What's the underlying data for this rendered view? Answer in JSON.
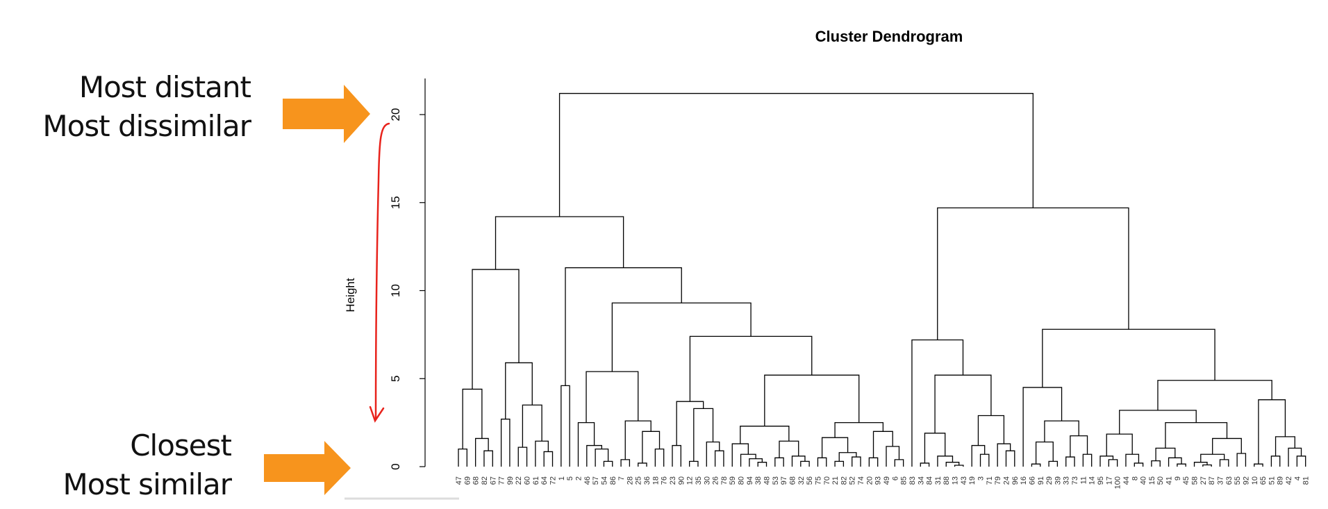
{
  "annotations": {
    "top_line1": "Most distant",
    "top_line2": "Most dissimilar",
    "bottom_line1": "Closest",
    "bottom_line2": "Most similar",
    "arrow_color": "#F7941D",
    "scale_arrow_color": "#E8231C"
  },
  "chart_data": {
    "type": "dendrogram",
    "title": "Cluster Dendrogram",
    "ylabel": "Height",
    "xlabel": "",
    "ylim": [
      0,
      22
    ],
    "yticks": [
      "0",
      "5",
      "10",
      "15",
      "20"
    ],
    "grid": false,
    "line_color": "#000000",
    "leaves": [
      "47",
      "69",
      "68",
      "82",
      "67",
      "77",
      "99",
      "22",
      "60",
      "61",
      "64",
      "72",
      "1",
      "5",
      "2",
      "46",
      "57",
      "54",
      "86",
      "7",
      "28",
      "25",
      "36",
      "18",
      "76",
      "23",
      "90",
      "12",
      "35",
      "30",
      "26",
      "78",
      "59",
      "80",
      "94",
      "38",
      "48",
      "53",
      "97",
      "68",
      "32",
      "56",
      "75",
      "70",
      "21",
      "82",
      "52",
      "74",
      "20",
      "93",
      "49",
      "6",
      "85",
      "83",
      "34",
      "84",
      "31",
      "88",
      "13",
      "43",
      "19",
      "3",
      "71",
      "79",
      "24",
      "96",
      "16",
      "66",
      "91",
      "29",
      "39",
      "33",
      "73",
      "11",
      "14",
      "95",
      "17",
      "100",
      "44",
      "8",
      "40",
      "15",
      "50",
      "41",
      "9",
      "45",
      "58",
      "27",
      "87",
      "37",
      "63",
      "55",
      "92",
      "10",
      "65",
      "51",
      "89",
      "42",
      "4",
      "81"
    ],
    "tree": [
      21.2,
      [
        14.2,
        [
          11.2,
          [
            4.4,
            [
              1.0,
              0,
              1
            ],
            [
              1.6,
              2,
              [
                0.9,
                3,
                4
              ]
            ]
          ],
          [
            5.9,
            [
              2.7,
              5,
              6
            ],
            [
              3.5,
              [
                1.1,
                7,
                8
              ],
              [
                1.45,
                9,
                [
                  0.85,
                  10,
                  11
                ]
              ]
            ]
          ]
        ],
        [
          11.3,
          [
            4.6,
            12,
            13
          ],
          [
            9.3,
            [
              5.4,
              [
                2.5,
                14,
                [
                  1.2,
                  15,
                  [
                    1.0,
                    16,
                    [
                      0.3,
                      17,
                      18
                    ]
                  ]
                ]
              ],
              [
                2.6,
                [
                  0.4,
                  19,
                  20
                ],
                [
                  2.0,
                  [
                    0.2,
                    21,
                    22
                  ],
                  [
                    1.0,
                    23,
                    24
                  ]
                ]
              ]
            ],
            [
              7.4,
              [
                3.7,
                [
                  1.2,
                  25,
                  26
                ],
                [
                  3.3,
                  [
                    0.3,
                    27,
                    28
                  ],
                  [
                    1.4,
                    29,
                    [
                      0.9,
                      30,
                      31
                    ]
                  ]
                ]
              ],
              [
                5.2,
                [
                  2.3,
                  [
                    1.3,
                    32,
                    [
                      0.7,
                      33,
                      [
                        0.45,
                        34,
                        [
                          0.25,
                          35,
                          36
                        ]
                      ]
                    ]
                  ],
                  [
                    1.45,
                    [
                      0.5,
                      37,
                      38
                    ],
                    [
                      0.6,
                      39,
                      [
                        0.3,
                        40,
                        41
                      ]
                    ]
                  ]
                ],
                [
                  2.5,
                  [
                    1.65,
                    [
                      0.5,
                      42,
                      43
                    ],
                    [
                      0.8,
                      [
                        0.3,
                        44,
                        45
                      ],
                      [
                        0.55,
                        46,
                        47
                      ]
                    ]
                  ],
                  [
                    2.0,
                    [
                      0.5,
                      48,
                      49
                    ],
                    [
                      1.15,
                      50,
                      [
                        0.4,
                        51,
                        52
                      ]
                    ]
                  ]
                ]
              ]
            ]
          ]
        ]
      ],
      [
        14.7,
        [
          7.2,
          53,
          [
            5.2,
            [
              1.9,
              [
                0.2,
                54,
                55
              ],
              [
                0.6,
                56,
                [
                  0.25,
                  57,
                  [
                    0.08,
                    58,
                    59
                  ]
                ]
              ]
            ],
            [
              2.9,
              [
                1.2,
                60,
                [
                  0.7,
                  61,
                  62
                ]
              ],
              [
                1.3,
                63,
                [
                  0.9,
                  64,
                  65
                ]
              ]
            ]
          ]
        ],
        [
          7.8,
          [
            4.5,
            66,
            [
              2.6,
              [
                1.4,
                [
                  0.15,
                  67,
                  68
                ],
                [
                  0.3,
                  69,
                  70
                ]
              ],
              [
                1.75,
                [
                  0.55,
                  71,
                  72
                ],
                [
                  0.7,
                  73,
                  74
                ]
              ]
            ]
          ],
          [
            4.9,
            [
              3.2,
              [
                1.85,
                [
                  0.6,
                  75,
                  [
                    0.4,
                    76,
                    77
                  ]
                ],
                [
                  0.7,
                  78,
                  [
                    0.2,
                    79,
                    80
                  ]
                ]
              ],
              [
                2.5,
                [
                  1.05,
                  [
                    0.33,
                    81,
                    82
                  ],
                  [
                    0.5,
                    83,
                    [
                      0.15,
                      84,
                      85
                    ]
                  ]
                ],
                [
                  1.6,
                  [
                    0.7,
                    [
                      0.25,
                      86,
                      [
                        0.1,
                        87,
                        88
                      ]
                    ],
                    [
                      0.4,
                      89,
                      90
                    ]
                  ],
                  [
                    0.75,
                    91,
                    92
                  ]
                ]
              ]
            ],
            [
              3.8,
              [
                0.15,
                93,
                94
              ],
              [
                1.7,
                [
                  0.6,
                  95,
                  96
                ],
                [
                  1.05,
                  97,
                  [
                    0.6,
                    98,
                    99
                  ]
                ]
              ]
            ]
          ]
        ]
      ]
    ]
  }
}
